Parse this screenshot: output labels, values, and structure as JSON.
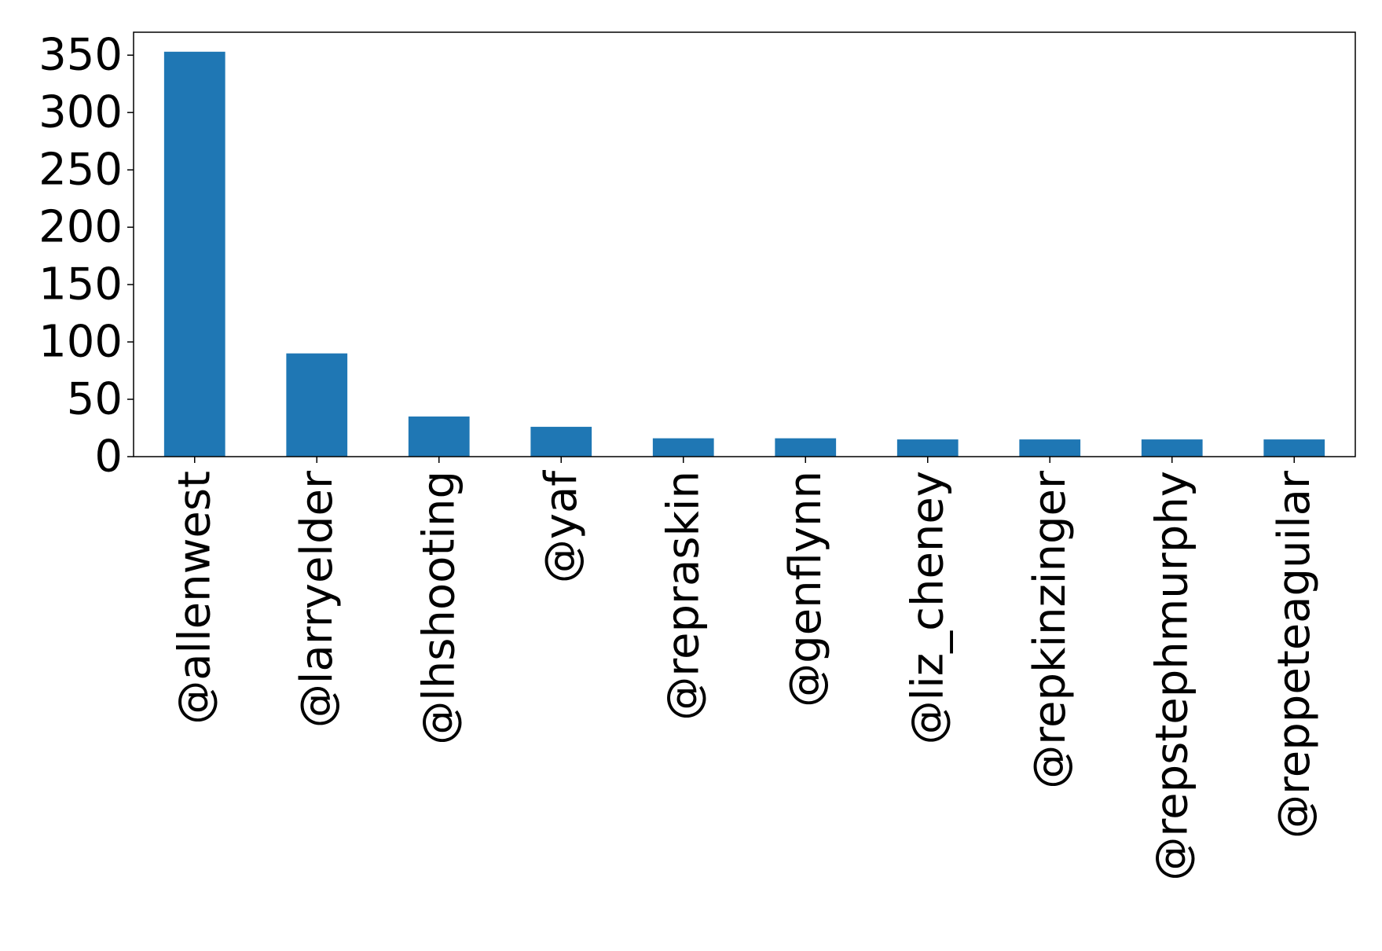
{
  "chart_data": {
    "type": "bar",
    "categories": [
      "@allenwest",
      "@larryelder",
      "@lhshooting",
      "@yaf",
      "@repraskin",
      "@genflynn",
      "@liz_cheney",
      "@repkinzinger",
      "@repstephmurphy",
      "@reppeteaguilar"
    ],
    "values": [
      353,
      90,
      35,
      26,
      16,
      16,
      15,
      15,
      15,
      15
    ],
    "title": "",
    "xlabel": "",
    "ylabel": "",
    "ylim": [
      0,
      370
    ],
    "yticks": [
      0,
      50,
      100,
      150,
      200,
      250,
      300,
      350
    ],
    "grid": false,
    "legend": "none",
    "bar_color": "#1f77b4"
  }
}
